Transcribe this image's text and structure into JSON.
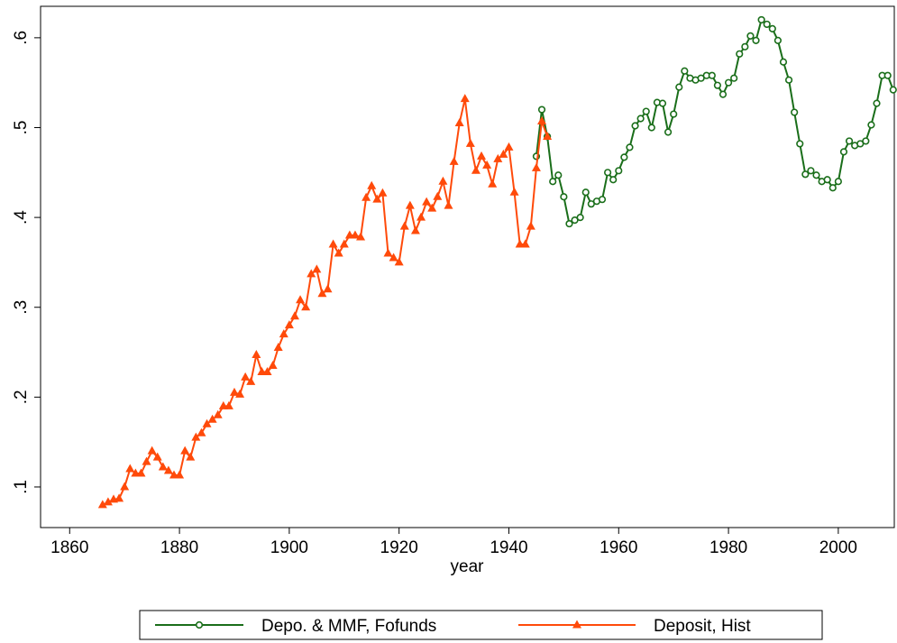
{
  "chart_data": {
    "type": "line",
    "x_label": "year",
    "xlim": [
      1854.7,
      2010.2
    ],
    "xticks": [
      1860,
      1880,
      1900,
      1920,
      1940,
      1960,
      1980,
      2000
    ],
    "ylim": [
      0.0548,
      0.635
    ],
    "yticks": [
      {
        "value": 0.1,
        "label": ".1"
      },
      {
        "value": 0.2,
        "label": ".2"
      },
      {
        "value": 0.3,
        "label": ".3"
      },
      {
        "value": 0.4,
        "label": ".4"
      },
      {
        "value": 0.5,
        "label": ".5"
      },
      {
        "value": 0.6,
        "label": ".6"
      }
    ],
    "legend": "bottom",
    "series": [
      {
        "name": "Depo. & MMF, Fofunds",
        "color": "#1a6e1a",
        "marker": "circle",
        "x": [
          1945,
          1946,
          1947,
          1948,
          1949,
          1950,
          1951,
          1952,
          1953,
          1954,
          1955,
          1956,
          1957,
          1958,
          1959,
          1960,
          1961,
          1962,
          1963,
          1964,
          1965,
          1966,
          1967,
          1968,
          1969,
          1970,
          1971,
          1972,
          1973,
          1974,
          1975,
          1976,
          1977,
          1978,
          1979,
          1980,
          1981,
          1982,
          1983,
          1984,
          1985,
          1986,
          1987,
          1988,
          1989,
          1990,
          1991,
          1992,
          1993,
          1994,
          1995,
          1996,
          1997,
          1998,
          1999,
          2000,
          2001,
          2002,
          2003,
          2004,
          2005,
          2006,
          2007,
          2008,
          2009,
          2010
        ],
        "values": [
          0.468,
          0.52,
          0.49,
          0.44,
          0.447,
          0.423,
          0.393,
          0.397,
          0.4,
          0.428,
          0.415,
          0.418,
          0.42,
          0.45,
          0.442,
          0.452,
          0.467,
          0.478,
          0.502,
          0.51,
          0.518,
          0.5,
          0.528,
          0.527,
          0.495,
          0.515,
          0.545,
          0.563,
          0.555,
          0.553,
          0.555,
          0.558,
          0.558,
          0.547,
          0.537,
          0.55,
          0.555,
          0.582,
          0.59,
          0.602,
          0.597,
          0.62,
          0.615,
          0.61,
          0.597,
          0.573,
          0.553,
          0.517,
          0.482,
          0.448,
          0.452,
          0.447,
          0.44,
          0.442,
          0.433,
          0.44,
          0.473,
          0.485,
          0.48,
          0.482,
          0.485,
          0.503,
          0.527,
          0.558,
          0.558,
          0.542
        ]
      },
      {
        "name": "Deposit, Hist",
        "color": "#ff4a0a",
        "marker": "triangle",
        "x": [
          1866,
          1867,
          1868,
          1869,
          1870,
          1871,
          1872,
          1873,
          1874,
          1875,
          1876,
          1877,
          1878,
          1879,
          1880,
          1881,
          1882,
          1883,
          1884,
          1885,
          1886,
          1887,
          1888,
          1889,
          1890,
          1891,
          1892,
          1893,
          1894,
          1895,
          1896,
          1897,
          1898,
          1899,
          1900,
          1901,
          1902,
          1903,
          1904,
          1905,
          1906,
          1907,
          1908,
          1909,
          1910,
          1911,
          1912,
          1913,
          1914,
          1915,
          1916,
          1917,
          1918,
          1919,
          1920,
          1921,
          1922,
          1923,
          1924,
          1925,
          1926,
          1927,
          1928,
          1929,
          1930,
          1931,
          1932,
          1933,
          1934,
          1935,
          1936,
          1937,
          1938,
          1939,
          1940,
          1941,
          1942,
          1943,
          1944,
          1945,
          1946,
          1947
        ],
        "values": [
          0.08,
          0.083,
          0.086,
          0.087,
          0.1,
          0.12,
          0.115,
          0.115,
          0.128,
          0.14,
          0.133,
          0.122,
          0.118,
          0.113,
          0.113,
          0.14,
          0.133,
          0.155,
          0.16,
          0.17,
          0.175,
          0.18,
          0.19,
          0.19,
          0.205,
          0.203,
          0.222,
          0.217,
          0.247,
          0.228,
          0.228,
          0.235,
          0.255,
          0.27,
          0.28,
          0.29,
          0.308,
          0.3,
          0.337,
          0.342,
          0.315,
          0.32,
          0.37,
          0.36,
          0.37,
          0.38,
          0.38,
          0.378,
          0.422,
          0.435,
          0.42,
          0.427,
          0.36,
          0.355,
          0.35,
          0.39,
          0.413,
          0.385,
          0.4,
          0.417,
          0.41,
          0.423,
          0.44,
          0.413,
          0.462,
          0.505,
          0.532,
          0.482,
          0.452,
          0.468,
          0.458,
          0.437,
          0.465,
          0.47,
          0.478,
          0.428,
          0.37,
          0.37,
          0.39,
          0.455,
          0.507,
          0.49
        ]
      }
    ]
  }
}
